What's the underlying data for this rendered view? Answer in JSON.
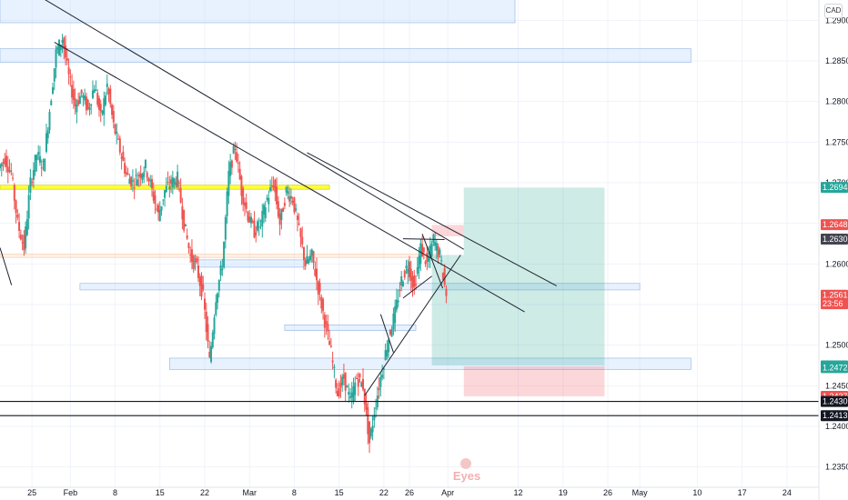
{
  "currency_badge": "CAD",
  "watermark_text": "Eyes",
  "chart_data": {
    "type": "candlestick",
    "title": "",
    "ylim": [
      1.2325,
      1.2925
    ],
    "y_ticks": [
      1.235,
      1.24,
      1.245,
      1.25,
      1.255,
      1.26,
      1.265,
      1.27,
      1.275,
      1.28,
      1.285,
      1.29
    ],
    "y_tick_labels": [
      "1.23500",
      "1.24000",
      "1.24500",
      "1.25000",
      "1.25500",
      "1.26000",
      "1.26500",
      "1.27000",
      "1.27500",
      "1.28000",
      "1.28500",
      "1.29000"
    ],
    "x_ticks": [
      {
        "label": "25",
        "day": -5
      },
      {
        "label": "Feb",
        "day": 1
      },
      {
        "label": "8",
        "day": 8
      },
      {
        "label": "15",
        "day": 15
      },
      {
        "label": "22",
        "day": 22
      },
      {
        "label": "Mar",
        "day": 29
      },
      {
        "label": "8",
        "day": 36
      },
      {
        "label": "15",
        "day": 43
      },
      {
        "label": "22",
        "day": 50
      },
      {
        "label": "26",
        "day": 54
      },
      {
        "label": "Apr",
        "day": 60
      },
      {
        "label": "12",
        "day": 71
      },
      {
        "label": "19",
        "day": 78
      },
      {
        "label": "26",
        "day": 85
      },
      {
        "label": "May",
        "day": 90
      },
      {
        "label": "10",
        "day": 99
      },
      {
        "label": "17",
        "day": 106
      },
      {
        "label": "24",
        "day": 113
      }
    ],
    "x_range_days": [
      -10,
      118
    ],
    "price_labels": [
      {
        "text": "1.26942",
        "value": 1.26942,
        "color": "#26a69a"
      },
      {
        "text": "1.26483",
        "value": 1.26483,
        "color": "#ef5350"
      },
      {
        "text": "1.26306",
        "value": 1.26306,
        "color": "#434651"
      },
      {
        "text": "1.25615",
        "value": 1.25615,
        "color": "#ef5350"
      },
      {
        "text": "23:56",
        "value": 1.2551,
        "color": "#ef5350"
      },
      {
        "text": "1.24745",
        "value": 1.24745,
        "color": "#26a69a"
      },
      {
        "text": "1.24723",
        "value": 1.24723,
        "color": "#26a69a"
      },
      {
        "text": "1.24370",
        "value": 1.2437,
        "color": "#ef5350"
      },
      {
        "text": "1.24307",
        "value": 1.24307,
        "color": "#131722"
      },
      {
        "text": "1.24132",
        "value": 1.24132,
        "color": "#131722"
      }
    ],
    "zones": [
      {
        "from_day": -10,
        "to_day": 70.5,
        "y_low": 1.2897,
        "y_high": 1.2927,
        "color": "blue"
      },
      {
        "from_day": -10,
        "to_day": 98,
        "y_low": 1.2848,
        "y_high": 1.2865,
        "color": "blue"
      },
      {
        "from_day": -10,
        "to_day": 41.5,
        "y_low": 1.2692,
        "y_high": 1.2697,
        "color": "yellow"
      },
      {
        "from_day": -10,
        "to_day": 59,
        "y_low": 1.2608,
        "y_high": 1.2612,
        "color": "orange"
      },
      {
        "from_day": 20,
        "to_day": 37.5,
        "y_low": 1.2596,
        "y_high": 1.2605,
        "color": "blue"
      },
      {
        "from_day": 2.5,
        "to_day": 90,
        "y_low": 1.2568,
        "y_high": 1.2576,
        "color": "blue"
      },
      {
        "from_day": 34.5,
        "to_day": 55,
        "y_low": 1.2518,
        "y_high": 1.2525,
        "color": "blue"
      },
      {
        "from_day": 16.5,
        "to_day": 98,
        "y_low": 1.247,
        "y_high": 1.2484,
        "color": "blue"
      }
    ],
    "position_boxes": [
      {
        "from_day": 57.5,
        "to_day": 62.5,
        "y_low": 1.2634,
        "y_high": 1.2648,
        "color": "red"
      },
      {
        "from_day": 57.5,
        "to_day": 62.5,
        "y_low": 1.2475,
        "y_high": 1.2611,
        "color": "green"
      },
      {
        "from_day": 62.5,
        "to_day": 84.5,
        "y_low": 1.2475,
        "y_high": 1.2694,
        "color": "green"
      },
      {
        "from_day": 62.5,
        "to_day": 84.5,
        "y_low": 1.2437,
        "y_high": 1.2474,
        "color": "red"
      }
    ],
    "trend_lines": [
      {
        "x1": -5,
        "y1": 1.2935,
        "x2": 62.5,
        "y2": 1.2618
      },
      {
        "x1": -1.5,
        "y1": 1.2873,
        "x2": 72,
        "y2": 1.2541
      },
      {
        "x1": 38,
        "y1": 1.2737,
        "x2": 77,
        "y2": 1.2573
      },
      {
        "x1": 47,
        "y1": 1.2438,
        "x2": 62,
        "y2": 1.2611
      },
      {
        "x1": 49.5,
        "y1": 1.2538,
        "x2": 51.5,
        "y2": 1.2491
      },
      {
        "x1": 53,
        "y1": 1.2558,
        "x2": 57.5,
        "y2": 1.2585
      },
      {
        "x1": 53,
        "y1": 1.2631,
        "x2": 59.5,
        "y2": 1.263
      },
      {
        "x1": 56,
        "y1": 1.2637,
        "x2": 59.2,
        "y2": 1.257
      },
      {
        "x1": -10,
        "y1": 1.262,
        "x2": -8.2,
        "y2": 1.2574
      }
    ],
    "horizontal_lines": [
      1.24307,
      1.24132
    ],
    "candles_seed": [
      [
        -10,
        1.2718
      ],
      [
        -9,
        1.273
      ],
      [
        -8,
        1.2712
      ],
      [
        -7,
        1.265
      ],
      [
        -6,
        1.262
      ],
      [
        -5,
        1.27
      ],
      [
        -4,
        1.2735
      ],
      [
        -3,
        1.272
      ],
      [
        -2,
        1.279
      ],
      [
        -1,
        1.286
      ],
      [
        0,
        1.2878
      ],
      [
        1,
        1.283
      ],
      [
        2,
        1.2795
      ],
      [
        3,
        1.281
      ],
      [
        4,
        1.279
      ],
      [
        5,
        1.282
      ],
      [
        6,
        1.278
      ],
      [
        7,
        1.282
      ],
      [
        8,
        1.277
      ],
      [
        9,
        1.274
      ],
      [
        10,
        1.271
      ],
      [
        11,
        1.27
      ],
      [
        12,
        1.271
      ],
      [
        13,
        1.272
      ],
      [
        14,
        1.269
      ],
      [
        15,
        1.266
      ],
      [
        16,
        1.269
      ],
      [
        17,
        1.27
      ],
      [
        18,
        1.2705
      ],
      [
        19,
        1.265
      ],
      [
        20,
        1.261
      ],
      [
        21,
        1.2595
      ],
      [
        22,
        1.256
      ],
      [
        23,
        1.248
      ],
      [
        24,
        1.256
      ],
      [
        25,
        1.26
      ],
      [
        26,
        1.271
      ],
      [
        27,
        1.2745
      ],
      [
        28,
        1.269
      ],
      [
        29,
        1.266
      ],
      [
        30,
        1.264
      ],
      [
        31,
        1.265
      ],
      [
        32,
        1.268
      ],
      [
        33,
        1.27
      ],
      [
        34,
        1.265
      ],
      [
        35,
        1.269
      ],
      [
        36,
        1.268
      ],
      [
        37,
        1.264
      ],
      [
        38,
        1.26
      ],
      [
        39,
        1.261
      ],
      [
        40,
        1.257
      ],
      [
        41,
        1.253
      ],
      [
        42,
        1.249
      ],
      [
        43,
        1.244
      ],
      [
        44,
        1.246
      ],
      [
        45,
        1.243
      ],
      [
        46,
        1.246
      ],
      [
        47,
        1.245
      ],
      [
        48,
        1.238
      ],
      [
        49,
        1.243
      ],
      [
        50,
        1.247
      ],
      [
        51,
        1.251
      ],
      [
        52,
        1.254
      ],
      [
        53,
        1.258
      ],
      [
        54,
        1.26
      ],
      [
        55,
        1.257
      ],
      [
        56,
        1.262
      ],
      [
        57,
        1.26
      ],
      [
        58,
        1.263
      ],
      [
        59,
        1.261
      ],
      [
        60,
        1.2562
      ]
    ]
  }
}
